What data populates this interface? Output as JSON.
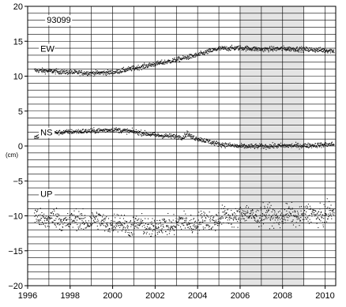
{
  "chart_data": {
    "type": "scatter",
    "title": "",
    "xlabel": "",
    "ylabel": "(cm)",
    "xlim": [
      1996,
      2010.5
    ],
    "ylim": [
      -20,
      20
    ],
    "x_ticks": [
      1996,
      1998,
      2000,
      2002,
      2004,
      2006,
      2008,
      2010
    ],
    "y_ticks": [
      -20,
      -15,
      -10,
      -5,
      0,
      5,
      10,
      15,
      20
    ],
    "minor_grid_y_step": 1,
    "grid": true,
    "shaded_interval": [
      2006,
      2009
    ],
    "station_label": "93099",
    "series": [
      {
        "name": "EW",
        "label_anchor": [
          1996.6,
          13.5
        ],
        "trend": [
          [
            1996.3,
            10.9
          ],
          [
            1997.0,
            10.8
          ],
          [
            1998.0,
            10.6
          ],
          [
            1999.0,
            10.5
          ],
          [
            2000.0,
            10.6
          ],
          [
            2001.0,
            11.2
          ],
          [
            2002.0,
            11.8
          ],
          [
            2003.0,
            12.4
          ],
          [
            2004.0,
            13.1
          ],
          [
            2004.5,
            13.6
          ],
          [
            2005.0,
            14.0
          ],
          [
            2006.0,
            14.1
          ],
          [
            2007.0,
            13.9
          ],
          [
            2008.0,
            14.0
          ],
          [
            2009.0,
            13.9
          ],
          [
            2010.4,
            13.7
          ]
        ],
        "noise": 0.25
      },
      {
        "name": "NS",
        "label_anchor": [
          1996.6,
          1.5
        ],
        "trend": [
          [
            1996.3,
            1.3
          ],
          [
            1996.8,
            1.6
          ],
          [
            1997.0,
            1.9
          ],
          [
            1998.0,
            2.1
          ],
          [
            1999.0,
            2.2
          ],
          [
            2000.0,
            2.4
          ],
          [
            2001.0,
            2.1
          ],
          [
            2002.0,
            1.6
          ],
          [
            2003.0,
            1.4
          ],
          [
            2003.3,
            1.3
          ],
          [
            2003.5,
            1.9
          ],
          [
            2003.7,
            1.3
          ],
          [
            2004.0,
            1.1
          ],
          [
            2005.0,
            0.3
          ],
          [
            2006.0,
            0.0
          ],
          [
            2007.0,
            0.0
          ],
          [
            2008.0,
            0.1
          ],
          [
            2009.0,
            0.1
          ],
          [
            2010.4,
            0.3
          ]
        ],
        "noise": 0.25
      },
      {
        "name": "UP",
        "label_anchor": [
          1996.6,
          -7.3
        ],
        "trend": [
          [
            1996.3,
            -10.1
          ],
          [
            1997.0,
            -10.4
          ],
          [
            1998.0,
            -10.7
          ],
          [
            1999.0,
            -10.6
          ],
          [
            2000.0,
            -11.0
          ],
          [
            2001.0,
            -11.3
          ],
          [
            2002.0,
            -11.6
          ],
          [
            2003.0,
            -11.0
          ],
          [
            2004.0,
            -10.9
          ],
          [
            2005.0,
            -10.3
          ],
          [
            2006.0,
            -9.8
          ],
          [
            2007.0,
            -9.9
          ],
          [
            2008.0,
            -10.0
          ],
          [
            2009.0,
            -9.8
          ],
          [
            2010.4,
            -9.7
          ]
        ],
        "noise": 1.0
      }
    ]
  }
}
